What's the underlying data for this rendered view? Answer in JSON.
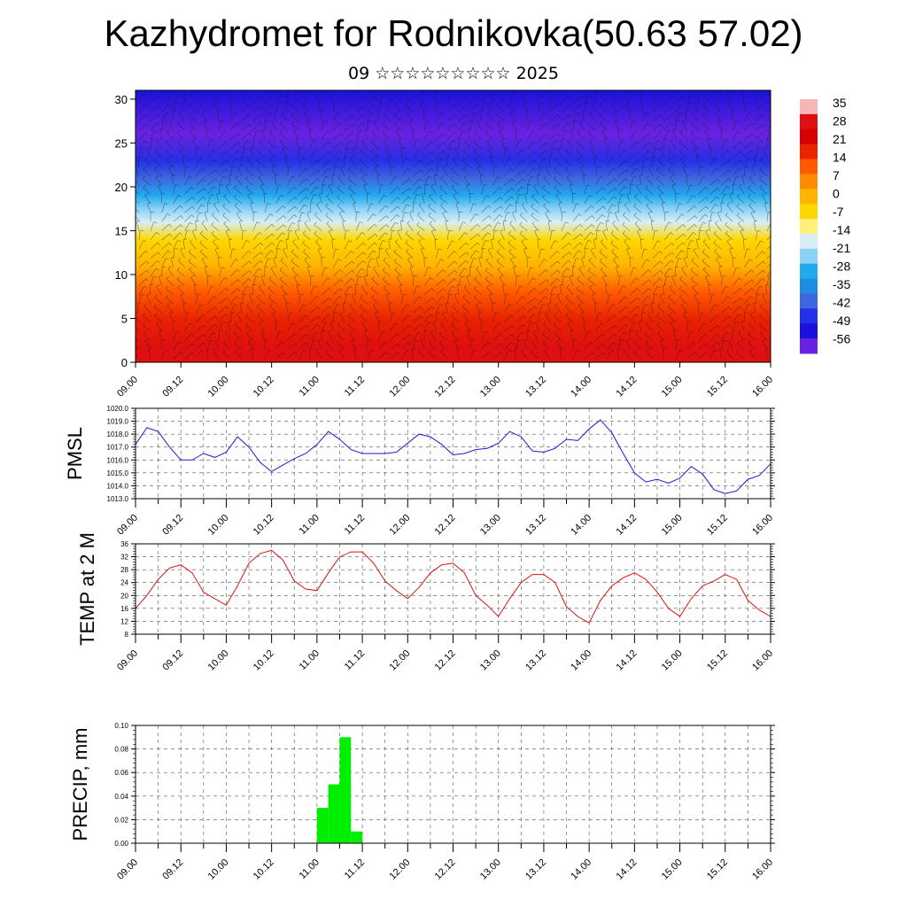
{
  "header": {
    "title": "Kazhydromet for Rodnikovka(50.63 57.02)",
    "subtitle": "09 ☆☆☆☆☆☆☆☆☆ 2025"
  },
  "time_labels": [
    "09.00",
    "09.12",
    "10.00",
    "10.12",
    "11.00",
    "11.12",
    "12.00",
    "12.12",
    "13.00",
    "13.12",
    "14.00",
    "14.12",
    "15.00",
    "15.12",
    "16.00"
  ],
  "chart_data": [
    {
      "type": "heatmap",
      "id": "cross-section",
      "xlabel": "",
      "ylabel": "",
      "yticks": [
        0,
        5,
        10,
        15,
        20,
        25,
        30
      ],
      "ylim": [
        0,
        31
      ],
      "colorbar": {
        "labels": [
          "35",
          "28",
          "21",
          "14",
          "7",
          "0",
          "-7",
          "-14",
          "-21",
          "-28",
          "-35",
          "-42",
          "-49",
          "-56"
        ],
        "colors": [
          "#f4b6b6",
          "#e01010",
          "#d60000",
          "#ea2400",
          "#ff5a00",
          "#ff8c00",
          "#ffb400",
          "#ffd800",
          "#fff07a",
          "#d8eef8",
          "#8ad2f6",
          "#22aaee",
          "#1f8ce0",
          "#3e66e0",
          "#2430e6",
          "#1a12dc",
          "#6a22e0"
        ]
      },
      "temperature_profile": [
        {
          "height": 0,
          "temp": 33
        },
        {
          "height": 2,
          "temp": 30
        },
        {
          "height": 5,
          "temp": 22
        },
        {
          "height": 8,
          "temp": 12
        },
        {
          "height": 11,
          "temp": 2
        },
        {
          "height": 14,
          "temp": -7
        },
        {
          "height": 16,
          "temp": -14
        },
        {
          "height": 17.5,
          "temp": -21
        },
        {
          "height": 19,
          "temp": -30
        },
        {
          "height": 21,
          "temp": -40
        },
        {
          "height": 23,
          "temp": -49
        },
        {
          "height": 26,
          "temp": -57
        },
        {
          "height": 31,
          "temp": -55
        }
      ]
    },
    {
      "type": "line",
      "id": "pmsl",
      "ylabel": "PMSL",
      "ylim": [
        1013.0,
        1020.0
      ],
      "yticks": [
        "1013.0",
        "1014.0",
        "1015.0",
        "1016.0",
        "1017.0",
        "1018.0",
        "1019.0",
        "1020.0"
      ],
      "color": "#1a1ad6",
      "step_hours": 3,
      "values": [
        1017.2,
        1018.5,
        1018.2,
        1017.0,
        1016.0,
        1016.0,
        1016.5,
        1016.2,
        1016.6,
        1017.8,
        1017.0,
        1015.8,
        1015.1,
        1015.6,
        1016.1,
        1016.5,
        1017.2,
        1018.2,
        1017.6,
        1016.8,
        1016.5,
        1016.5,
        1016.5,
        1016.6,
        1017.3,
        1018.0,
        1017.8,
        1017.2,
        1016.4,
        1016.5,
        1016.8,
        1016.9,
        1017.3,
        1018.2,
        1017.8,
        1016.7,
        1016.6,
        1016.9,
        1017.6,
        1017.5,
        1018.4,
        1019.1,
        1018.1,
        1016.5,
        1015.0,
        1014.3,
        1014.5,
        1014.2,
        1014.6,
        1015.5,
        1014.9,
        1013.7,
        1013.4,
        1013.6,
        1014.5,
        1014.8,
        1015.7
      ]
    },
    {
      "type": "line",
      "id": "temp2m",
      "ylabel": "TEMP at 2 M",
      "ylim": [
        8,
        36
      ],
      "yticks": [
        "8",
        "12",
        "16",
        "20",
        "24",
        "28",
        "32",
        "36"
      ],
      "color": "#dd1111",
      "step_hours": 3,
      "values": [
        16,
        20,
        25,
        28.5,
        29.5,
        27,
        21,
        19,
        17,
        23,
        30,
        33,
        34,
        31,
        24.5,
        22,
        21.5,
        27,
        32,
        33.5,
        33.5,
        30,
        24.5,
        21.5,
        19,
        22.5,
        27,
        29.5,
        30,
        27,
        20,
        17,
        13.5,
        19,
        24,
        26.5,
        26.5,
        24,
        16.5,
        13.5,
        11.5,
        18.5,
        23,
        25.5,
        27,
        25,
        21,
        16,
        13.5,
        19,
        23,
        24.5,
        26.5,
        25,
        18.5,
        15.5,
        13.5
      ]
    },
    {
      "type": "bar",
      "id": "precip",
      "ylabel": "PRECIP, mm",
      "ylim": [
        0,
        0.1
      ],
      "yticks": [
        "0.00",
        "0.02",
        "0.04",
        "0.06",
        "0.08",
        "0.10"
      ],
      "color": "#00ee00",
      "bars": [
        {
          "hour": 48,
          "value": 0.03
        },
        {
          "hour": 51,
          "value": 0.05
        },
        {
          "hour": 54,
          "value": 0.09
        },
        {
          "hour": 57,
          "value": 0.01
        }
      ]
    }
  ]
}
